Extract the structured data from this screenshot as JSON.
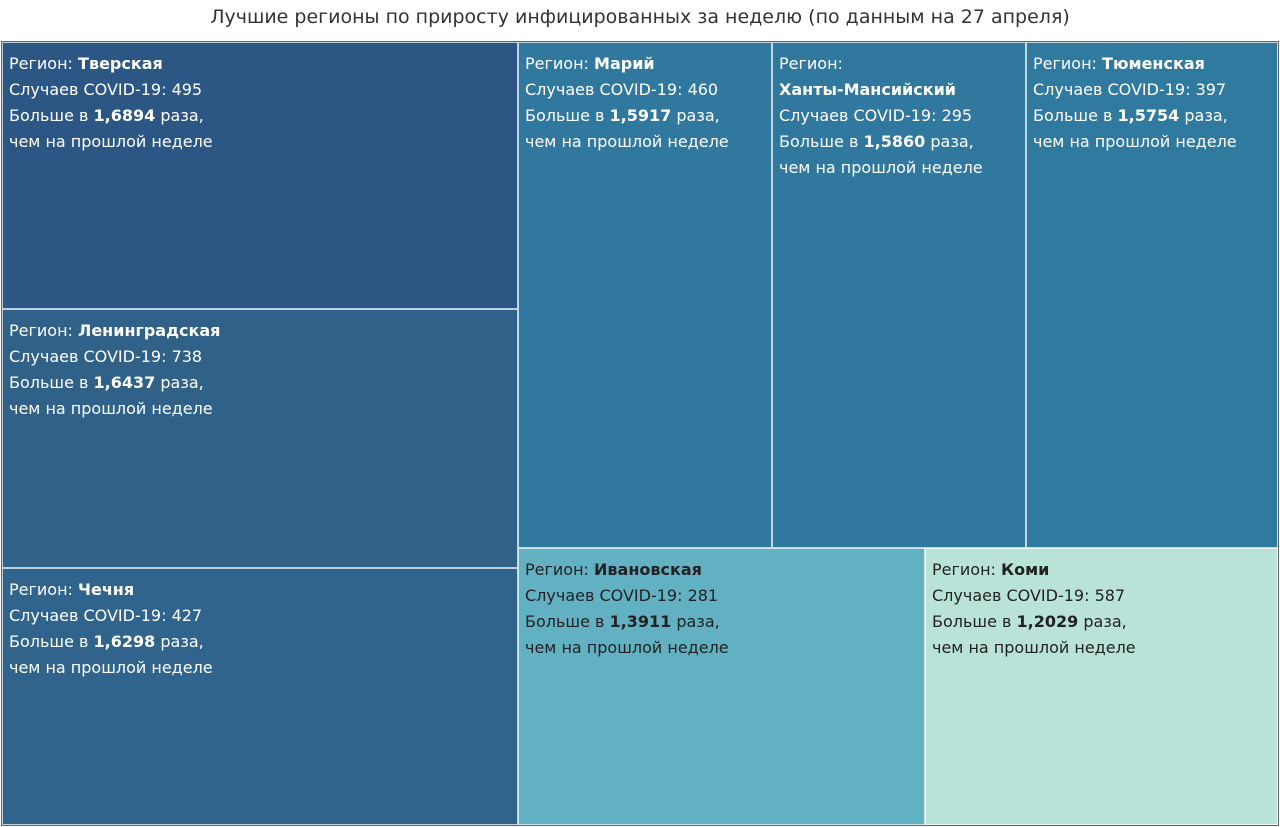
{
  "chart_data": {
    "type": "treemap",
    "title": "Лучшие регионы по приросту инфицированных за неделю (по данным на 27 апреля)",
    "labels": {
      "region_prefix": "Регион: ",
      "cases_prefix": "Случаев COVID-19: ",
      "ratio_prefix": "Больше в ",
      "ratio_suffix": " раза,",
      "last_line": "чем на прошлой неделе"
    },
    "items": [
      {
        "region": "Тверская",
        "cases": 495,
        "ratio": "1,6894",
        "color": "#2c5784"
      },
      {
        "region": "Ленинградская",
        "cases": 738,
        "ratio": "1,6437",
        "color": "#2f6189"
      },
      {
        "region": "Чечня",
        "cases": 427,
        "ratio": "1,6298",
        "color": "#30648c"
      },
      {
        "region": "Марий",
        "cases": 460,
        "ratio": "1,5917",
        "color": "#31789e"
      },
      {
        "region": "Ханты-Мансийский",
        "cases": 295,
        "ratio": "1,5860",
        "color": "#31789e"
      },
      {
        "region": "Тюменская",
        "cases": 397,
        "ratio": "1,5754",
        "color": "#317a9f"
      },
      {
        "region": "Ивановская",
        "cases": 281,
        "ratio": "1,3911",
        "color": "#62b1c3"
      },
      {
        "region": "Коми",
        "cases": 587,
        "ratio": "1,2029",
        "color": "#b9e3d8"
      }
    ]
  }
}
